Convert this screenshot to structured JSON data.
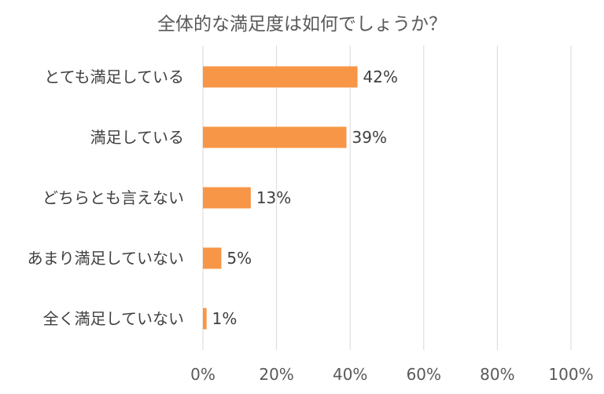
{
  "chart_data": {
    "type": "bar",
    "orientation": "horizontal",
    "title": "全体的な満足度は如何でしょうか？",
    "categories": [
      "とても満足している",
      "満足している",
      "どちらとも言えない",
      "あまり満足していない",
      "全く満足していない"
    ],
    "values": [
      42,
      39,
      13,
      5,
      1
    ],
    "value_labels": [
      "42%",
      "39%",
      "13%",
      "5%",
      "1%"
    ],
    "xlim": [
      0,
      100
    ],
    "x_ticks": [
      0,
      20,
      40,
      60,
      80,
      100
    ],
    "x_tick_labels": [
      "0%",
      "20%",
      "40%",
      "60%",
      "80%",
      "100%"
    ],
    "grid": true,
    "legend": "none",
    "colors": {
      "bar": "#F79646",
      "grid": "#D9D9D9",
      "text": "#404040"
    }
  }
}
